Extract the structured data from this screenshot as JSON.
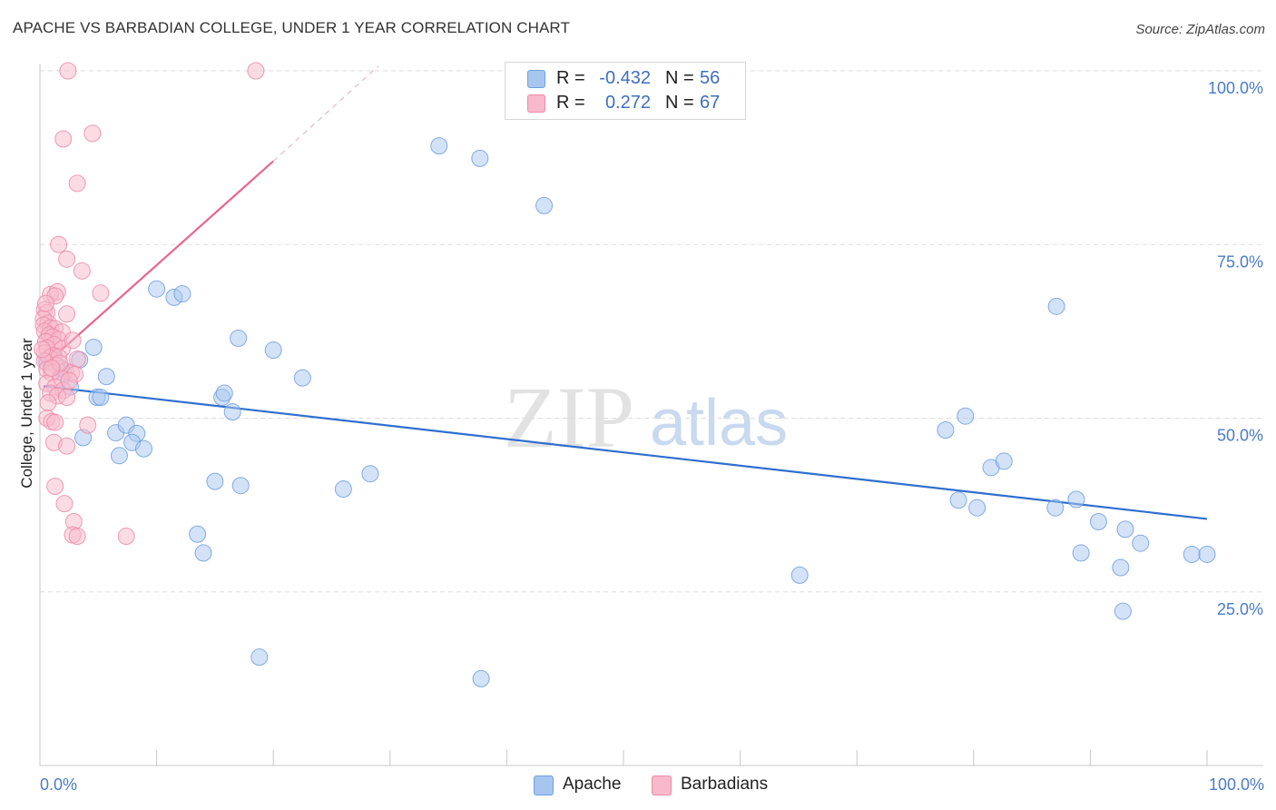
{
  "title": "APACHE VS BARBADIAN COLLEGE, UNDER 1 YEAR CORRELATION CHART",
  "source": "Source: ZipAtlas.com",
  "watermark": {
    "part1": "ZIP",
    "part2": "atlas"
  },
  "legend": [
    {
      "name": "Apache",
      "r_label": "R =",
      "r_value": "-0.432",
      "n_label": "N =",
      "n_value": "56",
      "color": "#a7c6ef",
      "stroke": "#6f9fe0"
    },
    {
      "name": "Barbadians",
      "r_label": "R =",
      "r_value": "0.272",
      "n_label": "N =",
      "n_value": "67",
      "color": "#f7b9cb",
      "stroke": "#ee89a8"
    }
  ],
  "chart_data": {
    "type": "scatter",
    "title": "APACHE VS BARBADIAN COLLEGE, UNDER 1 YEAR CORRELATION CHART",
    "xlabel": "",
    "ylabel": "College, Under 1 year",
    "xlim": [
      0,
      100
    ],
    "ylim": [
      0,
      100
    ],
    "x_tick_labels": [
      "0.0%",
      "100.0%"
    ],
    "y_ticks": [
      25,
      50,
      75,
      100
    ],
    "y_tick_labels": [
      "25.0%",
      "50.0%",
      "75.0%",
      "100.0%"
    ],
    "grid": true,
    "series": [
      {
        "name": "Apache",
        "color": "#a7c6ef",
        "stroke": "#6f9fe0",
        "trend": {
          "x0": 0.3,
          "y0": 54.6,
          "x1": 100,
          "y1": 35.5,
          "color": "#2f6fce"
        },
        "points": [
          [
            4.6,
            60.2
          ],
          [
            3.4,
            58.4
          ],
          [
            0.6,
            58.0
          ],
          [
            1.8,
            57.2
          ],
          [
            5.7,
            56.0
          ],
          [
            2.6,
            54.5
          ],
          [
            4.9,
            53.0
          ],
          [
            5.2,
            53.0
          ],
          [
            3.7,
            47.2
          ],
          [
            6.5,
            47.9
          ],
          [
            7.4,
            49.0
          ],
          [
            8.3,
            47.8
          ],
          [
            7.9,
            46.5
          ],
          [
            6.8,
            44.6
          ],
          [
            8.9,
            45.6
          ],
          [
            10.0,
            68.6
          ],
          [
            11.5,
            67.4
          ],
          [
            12.2,
            67.9
          ],
          [
            17.0,
            61.5
          ],
          [
            20.0,
            59.8
          ],
          [
            22.5,
            55.8
          ],
          [
            15.6,
            53.0
          ],
          [
            15.8,
            53.6
          ],
          [
            16.5,
            50.9
          ],
          [
            15.0,
            40.9
          ],
          [
            17.2,
            40.3
          ],
          [
            13.5,
            33.3
          ],
          [
            14.0,
            30.6
          ],
          [
            26.0,
            39.8
          ],
          [
            28.3,
            42.0
          ],
          [
            18.8,
            15.6
          ],
          [
            34.2,
            89.2
          ],
          [
            37.7,
            87.4
          ],
          [
            37.8,
            12.5
          ],
          [
            43.2,
            80.6
          ],
          [
            65.1,
            27.4
          ],
          [
            77.6,
            48.3
          ],
          [
            79.3,
            50.3
          ],
          [
            78.7,
            38.2
          ],
          [
            80.3,
            37.1
          ],
          [
            81.5,
            42.9
          ],
          [
            82.6,
            43.8
          ],
          [
            87.1,
            66.1
          ],
          [
            87.0,
            37.1
          ],
          [
            88.8,
            38.3
          ],
          [
            89.2,
            30.6
          ],
          [
            90.7,
            35.1
          ],
          [
            92.6,
            28.5
          ],
          [
            92.8,
            22.2
          ],
          [
            93.0,
            34.0
          ],
          [
            94.3,
            32.0
          ],
          [
            98.7,
            30.4
          ],
          [
            100.0,
            30.4
          ],
          [
            0.8,
            62.0
          ],
          [
            1.2,
            59.0
          ],
          [
            2.0,
            56.5
          ]
        ]
      },
      {
        "name": "Barbadians",
        "color": "#f7b9cb",
        "stroke": "#ee89a8",
        "trend": {
          "x0": 0.3,
          "y0": 57.5,
          "x1": 20.0,
          "y1": 87.0,
          "color": "#e8668f",
          "dash_to_x": 29.0,
          "dash_to_y": 100.7
        },
        "points": [
          [
            2.4,
            100.0
          ],
          [
            18.5,
            100.0
          ],
          [
            4.5,
            91.0
          ],
          [
            2.0,
            90.2
          ],
          [
            3.2,
            83.8
          ],
          [
            1.6,
            75.0
          ],
          [
            2.3,
            72.9
          ],
          [
            3.6,
            71.2
          ],
          [
            5.2,
            68.0
          ],
          [
            0.9,
            67.8
          ],
          [
            1.5,
            68.2
          ],
          [
            1.3,
            67.6
          ],
          [
            0.4,
            65.6
          ],
          [
            0.6,
            65.2
          ],
          [
            2.3,
            65.0
          ],
          [
            0.3,
            64.3
          ],
          [
            0.7,
            63.7
          ],
          [
            0.3,
            63.4
          ],
          [
            0.9,
            63.0
          ],
          [
            1.3,
            62.9
          ],
          [
            0.4,
            62.5
          ],
          [
            0.8,
            62.0
          ],
          [
            1.9,
            62.4
          ],
          [
            1.1,
            61.7
          ],
          [
            1.6,
            61.3
          ],
          [
            0.5,
            61.0
          ],
          [
            1.2,
            60.6
          ],
          [
            0.6,
            60.1
          ],
          [
            1.9,
            60.0
          ],
          [
            0.4,
            59.4
          ],
          [
            1.1,
            59.0
          ],
          [
            0.8,
            58.7
          ],
          [
            1.6,
            58.8
          ],
          [
            0.4,
            58.2
          ],
          [
            3.2,
            58.5
          ],
          [
            1.4,
            57.6
          ],
          [
            0.6,
            57.0
          ],
          [
            2.2,
            56.8
          ],
          [
            1.0,
            56.5
          ],
          [
            2.7,
            56.5
          ],
          [
            3.0,
            56.3
          ],
          [
            1.8,
            55.8
          ],
          [
            0.6,
            55.0
          ],
          [
            1.3,
            54.5
          ],
          [
            2.0,
            54.0
          ],
          [
            0.9,
            53.6
          ],
          [
            1.5,
            53.2
          ],
          [
            2.3,
            53.0
          ],
          [
            0.7,
            52.2
          ],
          [
            0.6,
            50.0
          ],
          [
            1.0,
            49.5
          ],
          [
            1.3,
            49.4
          ],
          [
            4.1,
            49.0
          ],
          [
            1.2,
            46.5
          ],
          [
            2.3,
            46.0
          ],
          [
            1.3,
            40.2
          ],
          [
            2.1,
            37.7
          ],
          [
            2.9,
            35.1
          ],
          [
            2.8,
            33.2
          ],
          [
            3.2,
            33.0
          ],
          [
            7.4,
            33.0
          ],
          [
            0.5,
            66.5
          ],
          [
            2.8,
            61.2
          ],
          [
            1.7,
            57.9
          ],
          [
            0.2,
            59.9
          ],
          [
            1.0,
            57.2
          ],
          [
            2.5,
            55.4
          ]
        ]
      }
    ]
  }
}
